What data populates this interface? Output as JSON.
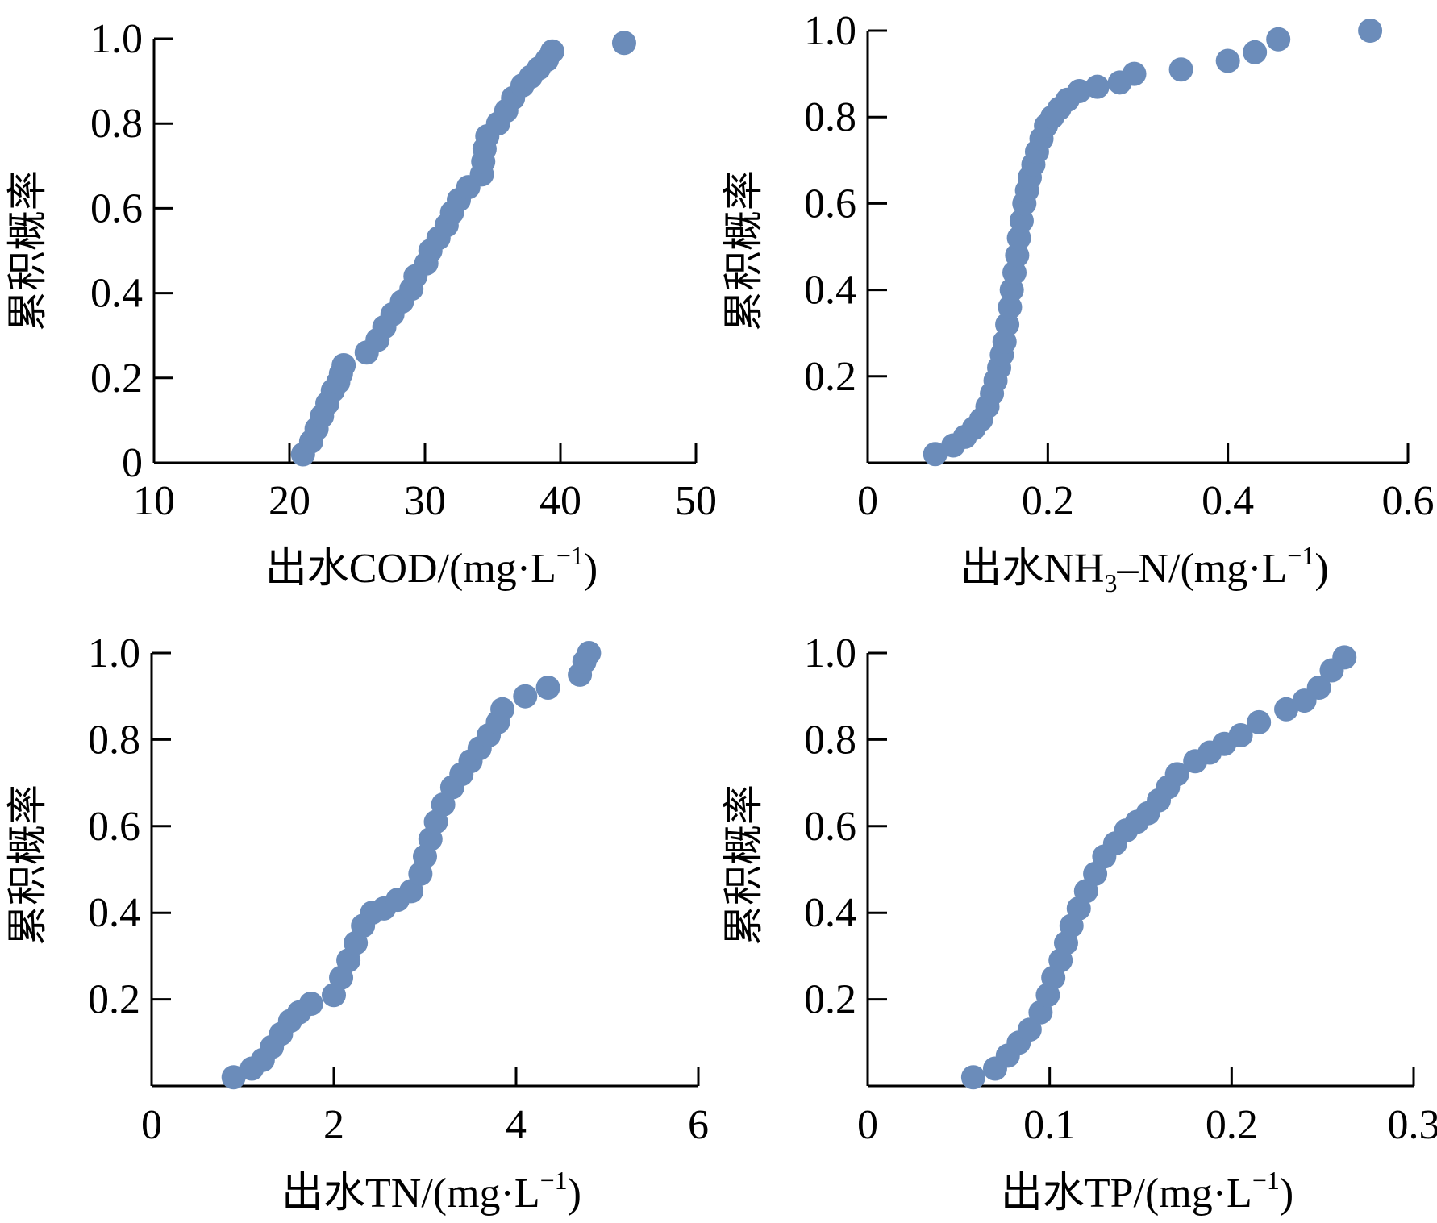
{
  "marker_color": "#6b8cba",
  "chart_data": [
    {
      "type": "scatter",
      "title": "",
      "ylabel": "累积概率",
      "xlabel": {
        "prefix": "出水",
        "species": "COD",
        "sub": "",
        "suffix": "",
        "unit_open": "/(mg·L",
        "sup": "−1",
        "unit_close": ")"
      },
      "xlim": [
        10,
        50
      ],
      "ylim": [
        0,
        1.0
      ],
      "xticks": [
        10,
        20,
        30,
        40,
        50
      ],
      "xtick_labels": [
        "10",
        "20",
        "30",
        "40",
        "50"
      ],
      "yticks": [
        0,
        0.2,
        0.4,
        0.6,
        0.8,
        1.0
      ],
      "ytick_labels": [
        "0",
        "0.2",
        "0.4",
        "0.6",
        "0.8",
        "1.0"
      ],
      "series": [
        {
          "x": [
            21.0,
            21.6,
            22.0,
            22.4,
            22.8,
            23.2,
            23.6,
            23.8,
            24.0,
            25.7,
            26.5,
            27.0,
            27.6,
            28.3,
            29.0,
            29.3,
            30.1,
            30.4,
            31.0,
            31.6,
            32.0,
            32.5,
            33.2,
            34.2,
            34.3,
            34.4,
            34.6,
            35.4,
            36.0,
            36.5,
            37.2,
            37.8,
            38.4,
            39.0,
            39.4,
            44.7
          ],
          "y": [
            0.02,
            0.05,
            0.08,
            0.11,
            0.14,
            0.17,
            0.19,
            0.21,
            0.23,
            0.26,
            0.29,
            0.32,
            0.35,
            0.38,
            0.41,
            0.44,
            0.47,
            0.5,
            0.53,
            0.56,
            0.59,
            0.62,
            0.65,
            0.68,
            0.71,
            0.74,
            0.77,
            0.8,
            0.83,
            0.86,
            0.89,
            0.91,
            0.93,
            0.95,
            0.97,
            0.99
          ]
        }
      ]
    },
    {
      "type": "scatter",
      "title": "",
      "ylabel": "累积概率",
      "xlabel": {
        "prefix": "出水",
        "species": "NH",
        "sub": "3",
        "suffix": "–N",
        "unit_open": "/(mg·L",
        "sup": "−1",
        "unit_close": ")"
      },
      "xlim": [
        0,
        0.6
      ],
      "ylim": [
        0,
        1.0
      ],
      "xticks": [
        0,
        0.2,
        0.4,
        0.6
      ],
      "xtick_labels": [
        "0",
        "0.2",
        "0.4",
        "0.6"
      ],
      "yticks": [
        0.2,
        0.4,
        0.6,
        0.8,
        1.0
      ],
      "ytick_labels": [
        "0.2",
        "0.4",
        "0.6",
        "0.8",
        "1.0"
      ],
      "series": [
        {
          "x": [
            0.075,
            0.095,
            0.108,
            0.118,
            0.126,
            0.133,
            0.138,
            0.142,
            0.146,
            0.149,
            0.152,
            0.155,
            0.158,
            0.16,
            0.163,
            0.166,
            0.168,
            0.171,
            0.174,
            0.177,
            0.18,
            0.184,
            0.188,
            0.193,
            0.198,
            0.205,
            0.213,
            0.222,
            0.235,
            0.255,
            0.28,
            0.296,
            0.348,
            0.4,
            0.43,
            0.456,
            0.558
          ],
          "y": [
            0.02,
            0.04,
            0.06,
            0.08,
            0.1,
            0.13,
            0.16,
            0.19,
            0.22,
            0.25,
            0.28,
            0.32,
            0.36,
            0.4,
            0.44,
            0.48,
            0.52,
            0.56,
            0.6,
            0.63,
            0.66,
            0.69,
            0.72,
            0.75,
            0.78,
            0.8,
            0.82,
            0.84,
            0.86,
            0.87,
            0.88,
            0.9,
            0.91,
            0.93,
            0.95,
            0.98,
            1.0
          ]
        }
      ]
    },
    {
      "type": "scatter",
      "title": "",
      "ylabel": "累积概率",
      "xlabel": {
        "prefix": "出水",
        "species": "TN",
        "sub": "",
        "suffix": "",
        "unit_open": "/(mg·L",
        "sup": "−1",
        "unit_close": ")"
      },
      "xlim": [
        0,
        6
      ],
      "ylim": [
        0,
        1.0
      ],
      "xticks": [
        0,
        2,
        4,
        6
      ],
      "xtick_labels": [
        "0",
        "2",
        "4",
        "6"
      ],
      "yticks": [
        0.2,
        0.4,
        0.6,
        0.8,
        1.0
      ],
      "ytick_labels": [
        "0.2",
        "0.4",
        "0.6",
        "0.8",
        "1.0"
      ],
      "series": [
        {
          "x": [
            0.9,
            1.1,
            1.22,
            1.32,
            1.42,
            1.52,
            1.62,
            1.75,
            2.0,
            2.08,
            2.16,
            2.24,
            2.32,
            2.42,
            2.55,
            2.7,
            2.85,
            2.95,
            3.0,
            3.06,
            3.12,
            3.2,
            3.3,
            3.4,
            3.5,
            3.6,
            3.7,
            3.8,
            3.85,
            4.1,
            4.35,
            4.7,
            4.75,
            4.8
          ],
          "y": [
            0.02,
            0.04,
            0.06,
            0.09,
            0.12,
            0.15,
            0.17,
            0.19,
            0.21,
            0.25,
            0.29,
            0.33,
            0.37,
            0.4,
            0.41,
            0.43,
            0.45,
            0.49,
            0.53,
            0.57,
            0.61,
            0.65,
            0.69,
            0.72,
            0.75,
            0.78,
            0.81,
            0.84,
            0.87,
            0.9,
            0.92,
            0.95,
            0.98,
            1.0
          ]
        }
      ]
    },
    {
      "type": "scatter",
      "title": "",
      "ylabel": "累积概率",
      "xlabel": {
        "prefix": "出水",
        "species": "TP",
        "sub": "",
        "suffix": "",
        "unit_open": "/(mg·L",
        "sup": "−1",
        "unit_close": ")"
      },
      "xlim": [
        0,
        0.3
      ],
      "ylim": [
        0,
        1.0
      ],
      "xticks": [
        0,
        0.1,
        0.2,
        0.3
      ],
      "xtick_labels": [
        "0",
        "0.1",
        "0.2",
        "0.3"
      ],
      "yticks": [
        0.2,
        0.4,
        0.6,
        0.8,
        1.0
      ],
      "ytick_labels": [
        "0.2",
        "0.4",
        "0.6",
        "0.8",
        "1.0"
      ],
      "series": [
        {
          "x": [
            0.058,
            0.07,
            0.077,
            0.083,
            0.089,
            0.095,
            0.099,
            0.102,
            0.106,
            0.109,
            0.112,
            0.116,
            0.12,
            0.125,
            0.13,
            0.136,
            0.142,
            0.148,
            0.154,
            0.16,
            0.165,
            0.17,
            0.18,
            0.188,
            0.196,
            0.205,
            0.215,
            0.23,
            0.24,
            0.248,
            0.255,
            0.262
          ],
          "y": [
            0.02,
            0.04,
            0.07,
            0.1,
            0.13,
            0.17,
            0.21,
            0.25,
            0.29,
            0.33,
            0.37,
            0.41,
            0.45,
            0.49,
            0.53,
            0.56,
            0.59,
            0.61,
            0.63,
            0.66,
            0.69,
            0.72,
            0.75,
            0.77,
            0.79,
            0.81,
            0.84,
            0.87,
            0.89,
            0.92,
            0.96,
            0.99
          ]
        }
      ]
    }
  ]
}
